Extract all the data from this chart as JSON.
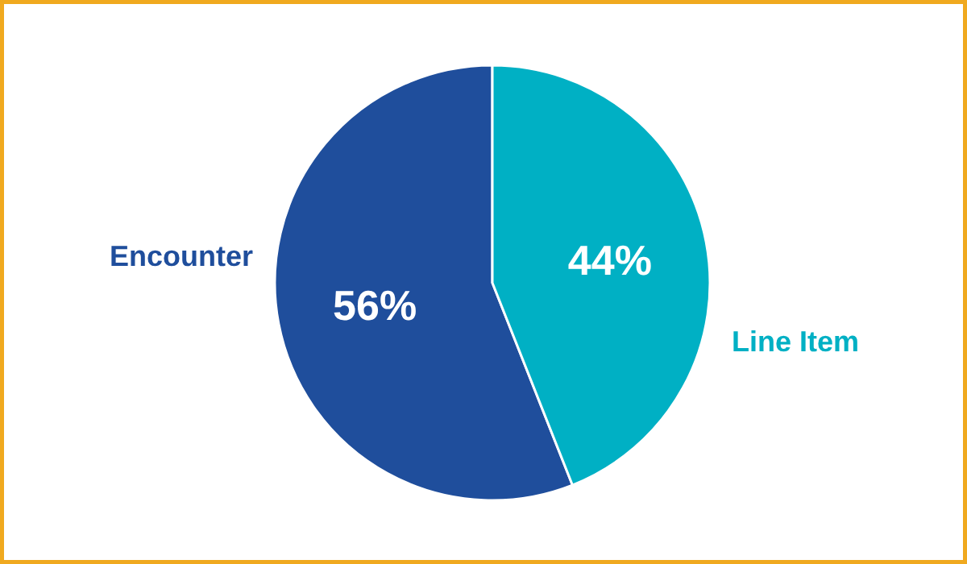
{
  "chart_data": {
    "type": "pie",
    "categories": [
      "Encounter",
      "Line Item"
    ],
    "values": [
      56,
      44
    ],
    "colors": [
      "#1f4e9c",
      "#00b0c4"
    ],
    "value_labels": [
      "56%",
      "44%"
    ]
  }
}
